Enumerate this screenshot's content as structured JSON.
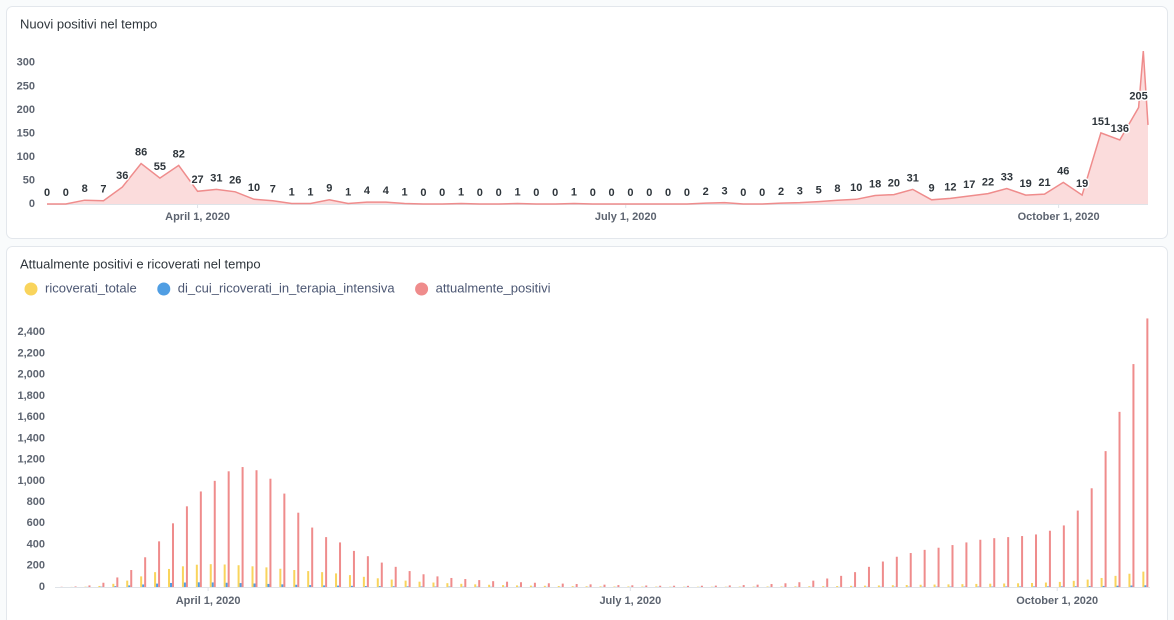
{
  "chart_data": [
    {
      "type": "area",
      "title": "Nuovi positivi nel tempo",
      "color": "#ef8c8c",
      "fill": "#fbdcdc",
      "x": [
        "2020-02-29",
        "2020-03-04",
        "2020-03-08",
        "2020-03-12",
        "2020-03-16",
        "2020-03-20",
        "2020-03-24",
        "2020-03-28",
        "2020-04-01",
        "2020-04-05",
        "2020-04-09",
        "2020-04-13",
        "2020-04-17",
        "2020-04-21",
        "2020-04-25",
        "2020-04-29",
        "2020-05-03",
        "2020-05-07",
        "2020-05-11",
        "2020-05-15",
        "2020-05-19",
        "2020-05-23",
        "2020-05-27",
        "2020-05-31",
        "2020-06-04",
        "2020-06-08",
        "2020-06-12",
        "2020-06-16",
        "2020-06-20",
        "2020-06-24",
        "2020-06-28",
        "2020-07-02",
        "2020-07-06",
        "2020-07-10",
        "2020-07-14",
        "2020-07-18",
        "2020-07-22",
        "2020-07-26",
        "2020-07-30",
        "2020-08-03",
        "2020-08-07",
        "2020-08-11",
        "2020-08-15",
        "2020-08-19",
        "2020-08-23",
        "2020-08-27",
        "2020-08-31",
        "2020-09-04",
        "2020-09-08",
        "2020-09-12",
        "2020-09-16",
        "2020-09-20",
        "2020-09-24",
        "2020-09-28",
        "2020-10-02",
        "2020-10-06",
        "2020-10-10",
        "2020-10-14",
        "2020-10-18",
        "2020-10-19",
        "2020-10-20"
      ],
      "values": [
        0,
        0,
        8,
        7,
        36,
        86,
        55,
        82,
        27,
        31,
        26,
        10,
        7,
        1,
        1,
        9,
        1,
        4,
        4,
        1,
        0,
        0,
        1,
        0,
        0,
        1,
        0,
        0,
        1,
        0,
        0,
        0,
        0,
        0,
        0,
        2,
        3,
        0,
        0,
        2,
        3,
        5,
        8,
        10,
        18,
        20,
        31,
        9,
        12,
        17,
        22,
        33,
        19,
        21,
        46,
        19,
        151,
        136,
        205,
        325,
        168
      ],
      "xlim": [
        "2020-02-29",
        "2020-10-20"
      ],
      "xticks": [
        {
          "value": "2020-04-01",
          "label": "April 1, 2020"
        },
        {
          "value": "2020-07-01",
          "label": "July 1, 2020"
        },
        {
          "value": "2020-10-01",
          "label": "October 1, 2020"
        }
      ],
      "ylim": [
        0,
        340
      ],
      "yticks": [
        0,
        50,
        100,
        150,
        200,
        250,
        300
      ],
      "grid": false
    },
    {
      "type": "bar",
      "title": "Attualmente positivi e ricoverati nel tempo",
      "x": [
        "2020-02-29",
        "2020-03-03",
        "2020-03-06",
        "2020-03-09",
        "2020-03-12",
        "2020-03-15",
        "2020-03-18",
        "2020-03-21",
        "2020-03-24",
        "2020-03-27",
        "2020-03-30",
        "2020-04-02",
        "2020-04-05",
        "2020-04-08",
        "2020-04-11",
        "2020-04-14",
        "2020-04-17",
        "2020-04-20",
        "2020-04-23",
        "2020-04-26",
        "2020-04-29",
        "2020-05-02",
        "2020-05-05",
        "2020-05-08",
        "2020-05-11",
        "2020-05-14",
        "2020-05-17",
        "2020-05-20",
        "2020-05-23",
        "2020-05-26",
        "2020-05-29",
        "2020-06-01",
        "2020-06-04",
        "2020-06-07",
        "2020-06-10",
        "2020-06-13",
        "2020-06-16",
        "2020-06-19",
        "2020-06-22",
        "2020-06-25",
        "2020-06-28",
        "2020-07-01",
        "2020-07-04",
        "2020-07-07",
        "2020-07-10",
        "2020-07-13",
        "2020-07-16",
        "2020-07-19",
        "2020-07-22",
        "2020-07-25",
        "2020-07-28",
        "2020-07-31",
        "2020-08-03",
        "2020-08-06",
        "2020-08-09",
        "2020-08-12",
        "2020-08-15",
        "2020-08-18",
        "2020-08-21",
        "2020-08-24",
        "2020-08-27",
        "2020-08-30",
        "2020-09-02",
        "2020-09-05",
        "2020-09-08",
        "2020-09-11",
        "2020-09-14",
        "2020-09-17",
        "2020-09-20",
        "2020-09-23",
        "2020-09-26",
        "2020-09-29",
        "2020-10-02",
        "2020-10-05",
        "2020-10-08",
        "2020-10-11",
        "2020-10-14",
        "2020-10-17",
        "2020-10-20"
      ],
      "series": [
        {
          "name": "ricoverati_totale",
          "color": "#f9d45c",
          "values": [
            0,
            1,
            3,
            10,
            30,
            60,
            100,
            140,
            170,
            195,
            210,
            215,
            212,
            205,
            195,
            185,
            172,
            160,
            150,
            140,
            128,
            112,
            96,
            82,
            70,
            60,
            50,
            42,
            36,
            30,
            25,
            21,
            18,
            15,
            13,
            11,
            9,
            8,
            7,
            6,
            5,
            5,
            4,
            4,
            3,
            3,
            3,
            3,
            3,
            4,
            4,
            5,
            5,
            6,
            7,
            8,
            9,
            11,
            13,
            15,
            17,
            19,
            21,
            23,
            25,
            27,
            29,
            31,
            33,
            35,
            38,
            42,
            48,
            58,
            70,
            85,
            105,
            125,
            145
          ]
        },
        {
          "name": "di_cui_ricoverati_in_terapia_intensiva",
          "color": "#509ee3",
          "values": [
            0,
            0,
            1,
            3,
            8,
            15,
            24,
            32,
            38,
            42,
            44,
            43,
            40,
            37,
            33,
            29,
            25,
            21,
            18,
            15,
            13,
            11,
            9,
            8,
            7,
            6,
            5,
            4,
            4,
            3,
            3,
            2,
            2,
            2,
            2,
            1,
            1,
            1,
            1,
            1,
            1,
            1,
            1,
            1,
            1,
            1,
            1,
            1,
            1,
            1,
            1,
            1,
            1,
            1,
            1,
            1,
            1,
            2,
            2,
            2,
            3,
            3,
            3,
            3,
            4,
            4,
            4,
            4,
            5,
            5,
            5,
            6,
            6,
            7,
            8,
            10,
            12,
            14,
            16
          ]
        },
        {
          "name": "attualmente_positivi",
          "color": "#ef8c8c",
          "values": [
            2,
            5,
            15,
            40,
            90,
            160,
            280,
            430,
            600,
            760,
            900,
            1000,
            1090,
            1130,
            1100,
            1020,
            880,
            700,
            560,
            470,
            420,
            340,
            290,
            230,
            190,
            150,
            120,
            100,
            85,
            75,
            65,
            55,
            50,
            45,
            40,
            35,
            32,
            28,
            25,
            22,
            18,
            16,
            14,
            12,
            12,
            11,
            12,
            13,
            15,
            18,
            22,
            28,
            35,
            45,
            60,
            80,
            105,
            140,
            190,
            240,
            285,
            320,
            350,
            370,
            395,
            420,
            445,
            460,
            470,
            480,
            495,
            530,
            580,
            720,
            930,
            1280,
            1650,
            2100,
            2530
          ]
        }
      ],
      "xlim": [
        "2020-02-28",
        "2020-10-21"
      ],
      "xticks": [
        {
          "value": "2020-04-01",
          "label": "April 1, 2020"
        },
        {
          "value": "2020-07-01",
          "label": "July 1, 2020"
        },
        {
          "value": "2020-10-01",
          "label": "October 1, 2020"
        }
      ],
      "ylim": [
        0,
        2600
      ],
      "yticks": [
        0,
        200,
        400,
        600,
        800,
        {
          "value": 1000,
          "label": "1,000"
        },
        {
          "value": 1200,
          "label": "1,200"
        },
        {
          "value": 1400,
          "label": "1,400"
        },
        {
          "value": 1600,
          "label": "1,600"
        },
        {
          "value": 1800,
          "label": "1,800"
        },
        {
          "value": 2000,
          "label": "2,000"
        },
        {
          "value": 2200,
          "label": "2,200"
        },
        {
          "value": 2400,
          "label": "2,400"
        }
      ],
      "grid": false
    }
  ]
}
